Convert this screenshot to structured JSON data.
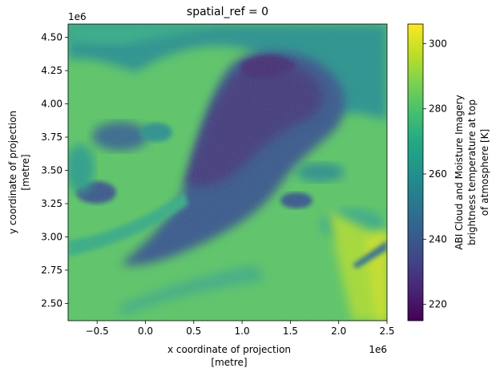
{
  "chart_data": {
    "type": "heatmap",
    "title": "spatial_ref = 0",
    "xlabel": [
      "x coordinate of projection",
      "[metre]"
    ],
    "ylabel": [
      "y coordinate of projection",
      "[metre]"
    ],
    "x_offset_label": "1e6",
    "y_offset_label": "1e6",
    "xlim": [
      -0.8,
      2.5
    ],
    "ylim": [
      2.37,
      4.6
    ],
    "x_ticks": [
      -0.5,
      0.0,
      0.5,
      1.0,
      1.5,
      2.0,
      2.5
    ],
    "x_tick_labels": [
      "−0.5",
      "0.0",
      "0.5",
      "1.0",
      "1.5",
      "2.0",
      "2.5"
    ],
    "y_ticks": [
      2.5,
      2.75,
      3.0,
      3.25,
      3.5,
      3.75,
      4.0,
      4.25,
      4.5
    ],
    "y_tick_labels": [
      "2.50",
      "2.75",
      "3.00",
      "3.25",
      "3.50",
      "3.75",
      "4.00",
      "4.25",
      "4.50"
    ],
    "colormap": "viridis",
    "colorbar": {
      "label": [
        "ABI Cloud and Moisture Imagery",
        "brightness temperature at top",
        "of atmosphere [K]"
      ],
      "vmin": 215,
      "vmax": 306,
      "ticks": [
        220,
        240,
        260,
        280,
        300
      ],
      "tick_labels": [
        "220",
        "240",
        "260",
        "280",
        "300"
      ]
    },
    "grid": false
  }
}
